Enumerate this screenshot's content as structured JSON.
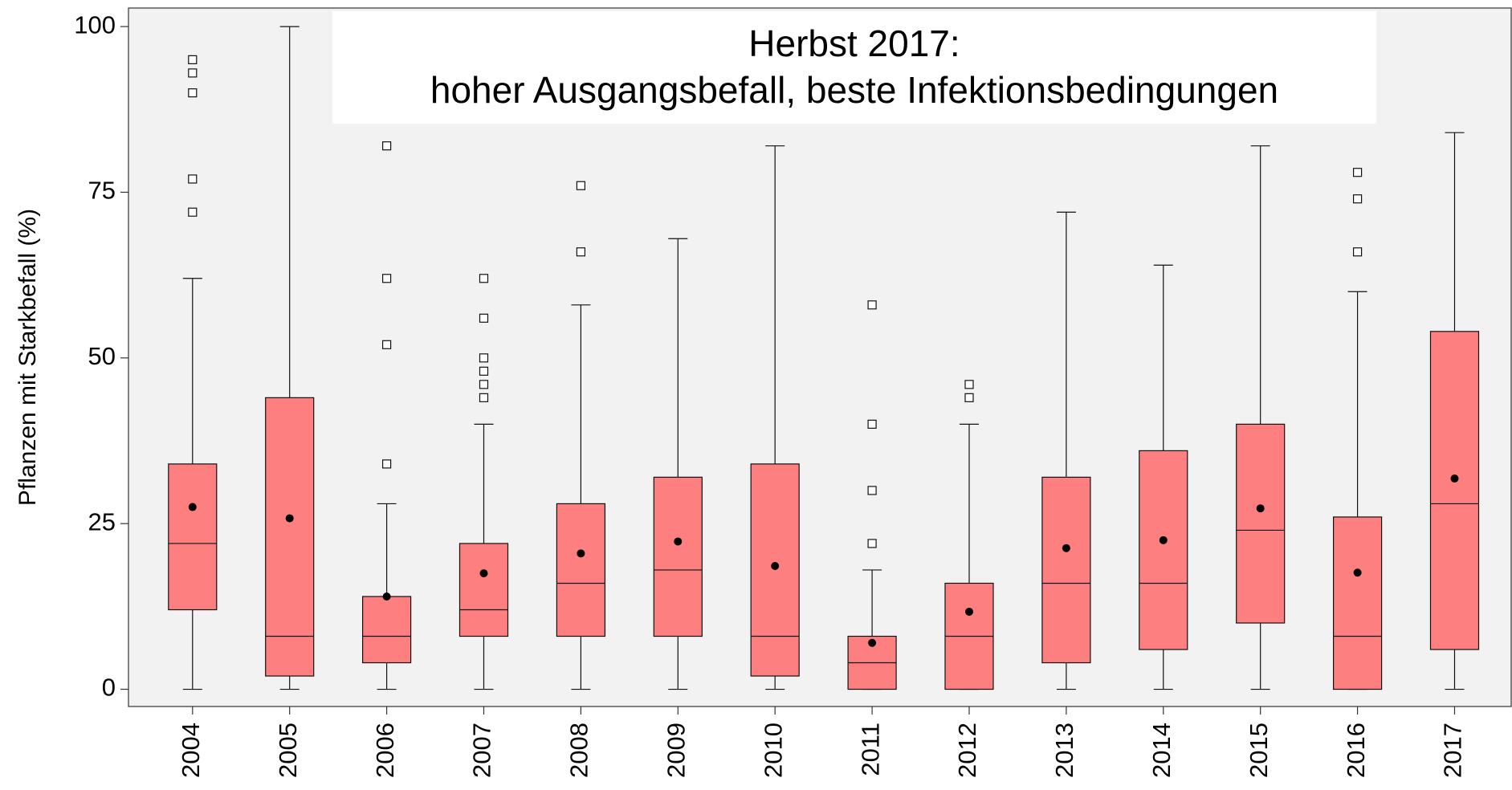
{
  "chart_data": {
    "type": "box",
    "title": "Herbst 2017:",
    "subtitle": "hoher Ausgangsbefall, beste Infektionsbedingungen",
    "y_label": "Pflanzen mit Starkbefall  (%)",
    "categories": [
      "2004",
      "2005",
      "2006",
      "2007",
      "2008",
      "2009",
      "2010",
      "2011",
      "2012",
      "2013",
      "2014",
      "2015",
      "2016",
      "2017"
    ],
    "color": "#fe7f80",
    "ylim": [
      -2.6,
      102.8
    ],
    "yticks": [
      0,
      25,
      50,
      75,
      100
    ],
    "boxes": [
      {
        "min": 0,
        "q1": 12,
        "median": 22,
        "q3": 34,
        "max": 62,
        "mean": 27.5,
        "outliers": [
          72,
          77,
          90,
          93,
          95
        ]
      },
      {
        "min": 0,
        "q1": 2,
        "median": 8,
        "q3": 44,
        "max": 100,
        "mean": 25.8,
        "outliers": []
      },
      {
        "min": 0,
        "q1": 4,
        "median": 8,
        "q3": 14,
        "max": 28,
        "mean": 14,
        "outliers": [
          34,
          52,
          62,
          82
        ]
      },
      {
        "min": 0,
        "q1": 8,
        "median": 12,
        "q3": 22,
        "max": 40,
        "mean": 17.5,
        "outliers": [
          44,
          46,
          48,
          50,
          56,
          62
        ]
      },
      {
        "min": 0,
        "q1": 8,
        "median": 16,
        "q3": 28,
        "max": 58,
        "mean": 20.5,
        "outliers": [
          66,
          76
        ]
      },
      {
        "min": 0,
        "q1": 8,
        "median": 18,
        "q3": 32,
        "max": 68,
        "mean": 22.3,
        "outliers": []
      },
      {
        "min": 0,
        "q1": 2,
        "median": 8,
        "q3": 34,
        "max": 82,
        "mean": 18.6,
        "outliers": []
      },
      {
        "min": 0,
        "q1": 0,
        "median": 4,
        "q3": 8,
        "max": 18,
        "mean": 7,
        "outliers": [
          22,
          30,
          40,
          58
        ]
      },
      {
        "min": 0,
        "q1": 0,
        "median": 8,
        "q3": 16,
        "max": 40,
        "mean": 11.7,
        "outliers": [
          44,
          46
        ]
      },
      {
        "min": 0,
        "q1": 4,
        "median": 16,
        "q3": 32,
        "max": 72,
        "mean": 21.3,
        "outliers": []
      },
      {
        "min": 0,
        "q1": 6,
        "median": 16,
        "q3": 36,
        "max": 64,
        "mean": 22.5,
        "outliers": []
      },
      {
        "min": 0,
        "q1": 10,
        "median": 24,
        "q3": 40,
        "max": 82,
        "mean": 27.3,
        "outliers": []
      },
      {
        "min": 0,
        "q1": 0,
        "median": 8,
        "q3": 26,
        "max": 60,
        "mean": 17.6,
        "outliers": [
          66,
          74,
          78
        ]
      },
      {
        "min": 0,
        "q1": 6,
        "median": 28,
        "q3": 54,
        "max": 84,
        "mean": 31.8,
        "outliers": []
      }
    ]
  }
}
